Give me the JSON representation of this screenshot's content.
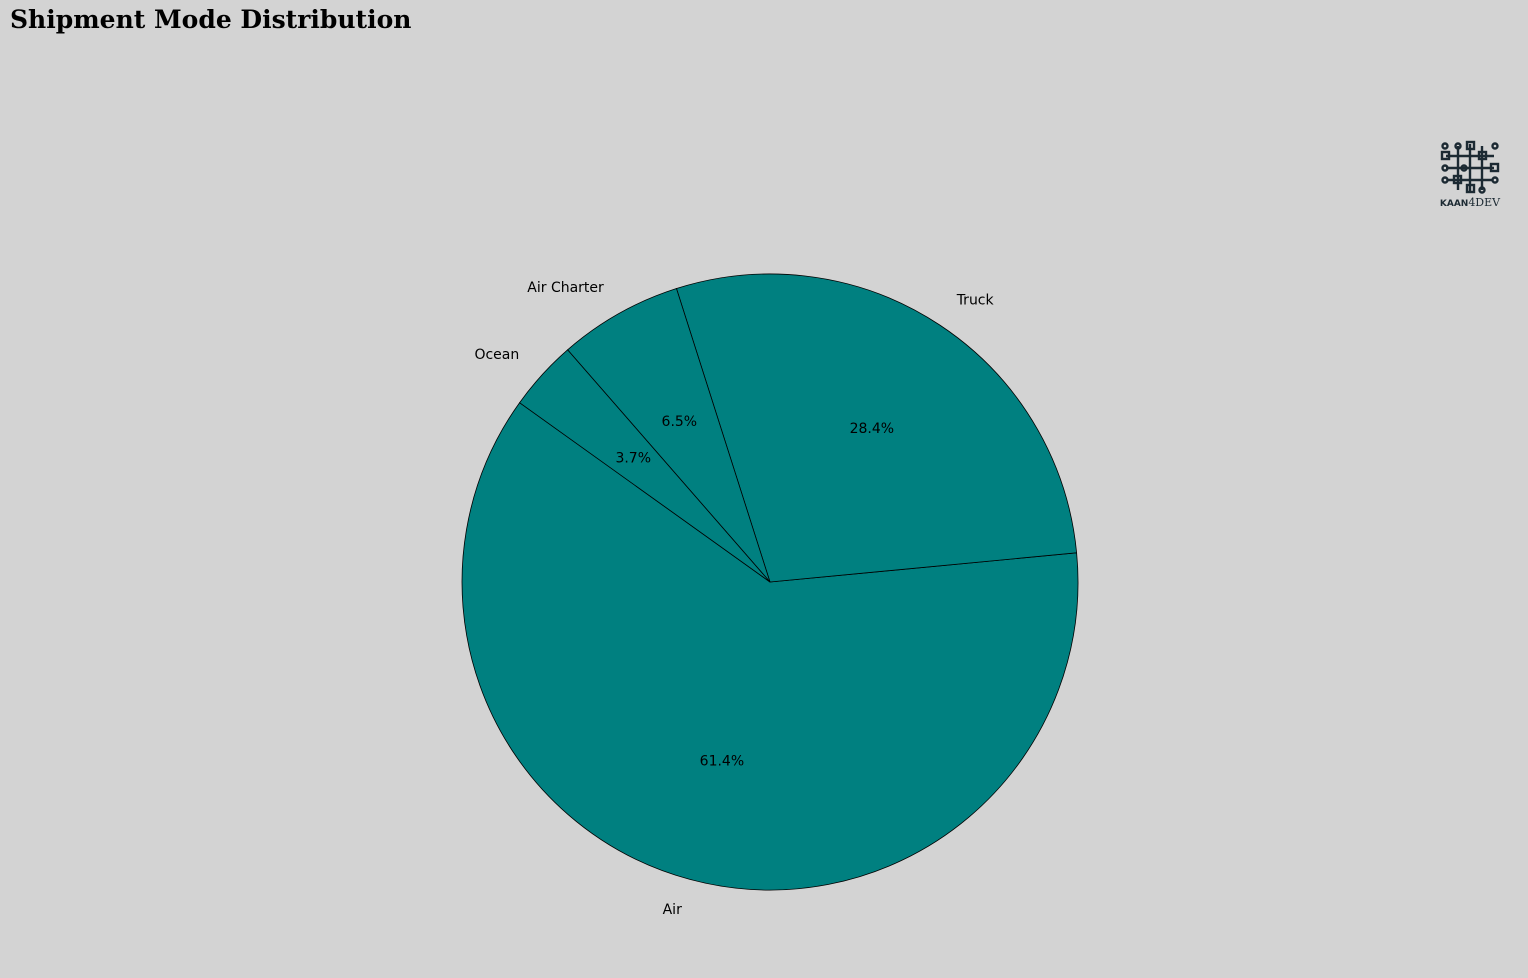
{
  "chart_data": {
    "type": "pie",
    "title": "Shipment Mode Distribution",
    "categories": [
      "Air",
      "Truck",
      "Air Charter",
      "Ocean"
    ],
    "values": [
      61.4,
      28.4,
      6.5,
      3.7
    ],
    "value_labels": [
      "61.4%",
      "28.4%",
      "6.5%",
      "3.7%"
    ],
    "colors": {
      "slice_fill": "#008080",
      "slice_edge": "#000000",
      "background": "#d3d3d3"
    },
    "legend": "none"
  },
  "logo": {
    "icon": "circuit-board-icon",
    "brand_left": "KAAN",
    "brand_right": "4DEV"
  }
}
